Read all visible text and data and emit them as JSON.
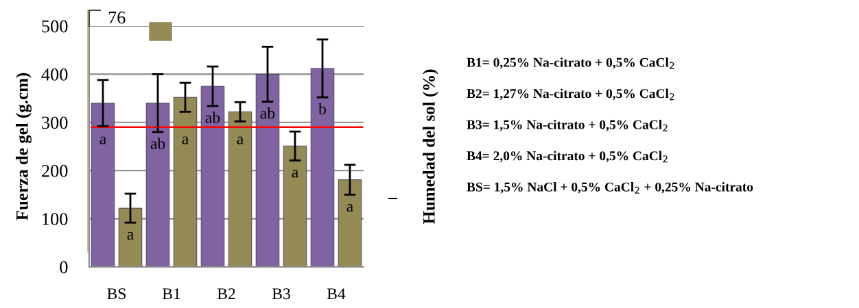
{
  "chart_data": {
    "type": "bar",
    "categories": [
      "BS",
      "B1",
      "B2",
      "B3",
      "B4"
    ],
    "ylabel": "Fuerza de gel (g.cm)",
    "y2label": "Humedad del sol (%)",
    "ylim": [
      0,
      500
    ],
    "yticks": [
      0,
      100,
      200,
      300,
      400,
      500
    ],
    "grid": "y",
    "series": [
      {
        "color": "#8064a2",
        "values": [
          340,
          340,
          375,
          400,
          412
        ],
        "errors": [
          48,
          60,
          41,
          57,
          60
        ],
        "value_labels": [
          "a",
          "ab",
          "ab",
          "ab",
          "b"
        ]
      },
      {
        "color": "#948a54",
        "values": [
          122,
          352,
          322,
          251,
          181
        ],
        "errors": [
          30,
          30,
          20,
          30,
          31
        ],
        "value_labels": [
          "a",
          "a",
          "a",
          "a",
          "a"
        ]
      }
    ],
    "ref_lines": [
      {
        "axis": "y",
        "value": 290,
        "color": "#ff0000"
      }
    ],
    "annotations": [
      "76",
      "B1= 0,25% Na-citrato + 0,5% CaCl$_{2}$",
      "B2= 1,27% Na-citrato + 0,5% CaCl$_{2}$",
      "B3= 1,5% Na-citrato + 0,5% CaCl$_{2}$",
      "B4= 2,0% Na-citrato + 0,5% CaCl$_{2}$",
      "BS= 1,5% NaCl + 0,5% CaCl$_{2}$ + 0,25% Na-citrato"
    ]
  }
}
